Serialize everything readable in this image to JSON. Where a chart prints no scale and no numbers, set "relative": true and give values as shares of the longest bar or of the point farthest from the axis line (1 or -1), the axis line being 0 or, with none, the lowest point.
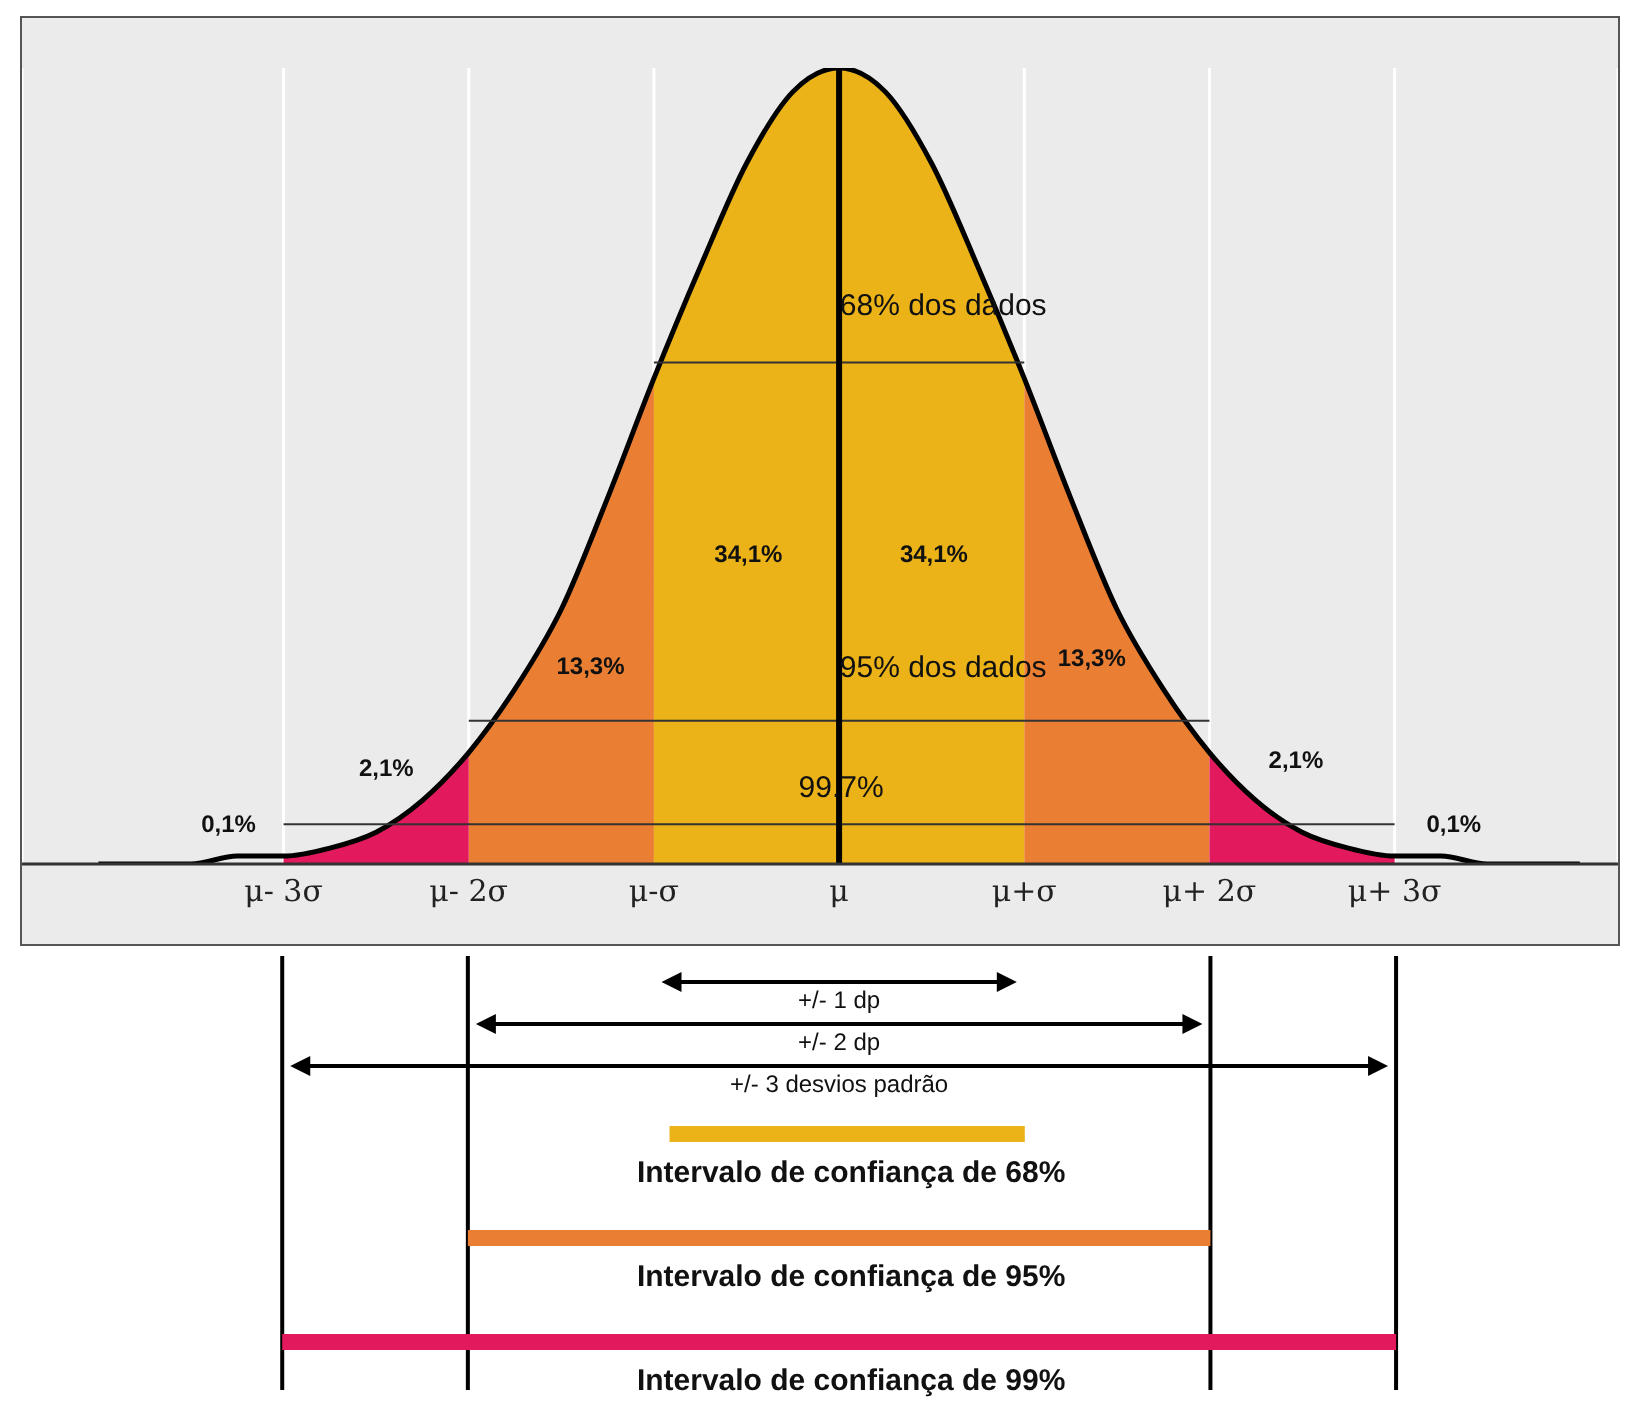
{
  "chart_data": {
    "type": "area",
    "relative": true,
    "legend": false,
    "grid": "x",
    "marker": "none",
    "categories": [
      null,
      null,
      null,
      null,
      "μ- 3σ",
      null,
      null,
      null,
      "μ- 2σ",
      null,
      null,
      null,
      "μ-σ",
      null,
      null,
      null,
      "μ",
      null,
      null,
      null,
      "μ+σ",
      null,
      null,
      null,
      "μ+ 2σ",
      null,
      null,
      null,
      "μ+ 3σ",
      null,
      null,
      null,
      null
    ],
    "series": [
      {
        "color": "#ebb318",
        "values": [
          null,
          null,
          null,
          null,
          null,
          null,
          null,
          null,
          null,
          null,
          null,
          null,
          0.61,
          0.75,
          0.88,
          0.97,
          1,
          0.97,
          0.88,
          0.75,
          0.61,
          null,
          null,
          null,
          null,
          null,
          null,
          null,
          null,
          null,
          null,
          null,
          null
        ]
      },
      {
        "color": "#ea7f33",
        "values": [
          null,
          null,
          null,
          null,
          null,
          null,
          null,
          null,
          0.14,
          0.22,
          0.32,
          0.46,
          0.61,
          null,
          null,
          null,
          null,
          null,
          null,
          null,
          null,
          null,
          null,
          null,
          null,
          null,
          null,
          null,
          null,
          null,
          null,
          null,
          null
        ]
      },
      {
        "color": "#ea7f33",
        "values": [
          null,
          null,
          null,
          null,
          null,
          null,
          null,
          null,
          null,
          null,
          null,
          null,
          null,
          null,
          null,
          null,
          null,
          null,
          null,
          null,
          0.61,
          0.46,
          0.32,
          0.22,
          0.14,
          null,
          null,
          null,
          null,
          null,
          null,
          null,
          null
        ]
      },
      {
        "color": "#e3195e",
        "values": [
          null,
          null,
          null,
          null,
          0.01,
          0.02,
          0.04,
          0.08,
          0.14,
          null,
          null,
          null,
          null,
          null,
          null,
          null,
          null,
          null,
          null,
          null,
          null,
          null,
          null,
          null,
          null,
          null,
          null,
          null,
          null,
          null,
          null,
          null,
          null
        ]
      },
      {
        "color": "#e3195e",
        "values": [
          null,
          null,
          null,
          null,
          null,
          null,
          null,
          null,
          null,
          null,
          null,
          null,
          null,
          null,
          null,
          null,
          null,
          null,
          null,
          null,
          null,
          null,
          null,
          null,
          0.14,
          0.08,
          0.04,
          0.02,
          0.01,
          null,
          null,
          null,
          null
        ]
      },
      {
        "type": "line",
        "color": "#000000",
        "values": [
          0,
          0,
          0,
          0.01,
          0.01,
          0.02,
          0.04,
          0.08,
          0.14,
          0.22,
          0.32,
          0.46,
          0.61,
          0.75,
          0.88,
          0.97,
          1,
          0.97,
          0.88,
          0.75,
          0.61,
          0.46,
          0.32,
          0.22,
          0.14,
          0.08,
          0.04,
          0.02,
          0.01,
          0.01,
          0,
          0,
          0
        ]
      },
      {
        "type": "line",
        "color": "#333333",
        "values": [
          null,
          null,
          null,
          null,
          null,
          null,
          null,
          null,
          null,
          null,
          null,
          null,
          0.63,
          0.63,
          0.63,
          0.63,
          0.63,
          0.63,
          0.63,
          0.63,
          0.63,
          null,
          null,
          null,
          null,
          null,
          null,
          null,
          null,
          null,
          null,
          null,
          null
        ]
      },
      {
        "type": "line",
        "color": "#333333",
        "values": [
          null,
          null,
          null,
          null,
          null,
          null,
          null,
          null,
          0.18,
          0.18,
          0.18,
          0.18,
          0.18,
          0.18,
          0.18,
          0.18,
          0.18,
          0.18,
          0.18,
          0.18,
          0.18,
          0.18,
          0.18,
          0.18,
          0.18,
          null,
          null,
          null,
          null,
          null,
          null,
          null,
          null
        ]
      },
      {
        "type": "line",
        "color": "#333333",
        "values": [
          null,
          null,
          null,
          null,
          0.05,
          0.05,
          0.05,
          0.05,
          0.05,
          0.05,
          0.05,
          0.05,
          0.05,
          0.05,
          0.05,
          0.05,
          0.05,
          0.05,
          0.05,
          0.05,
          0.05,
          0.05,
          0.05,
          0.05,
          0.05,
          0.05,
          0.05,
          0.05,
          0.05,
          null,
          null,
          null,
          null
        ]
      }
    ],
    "ref_lines": [
      {
        "axis": "x",
        "value": "μ",
        "color": "#000000"
      }
    ],
    "annotations": [
      "68% dos dados",
      "95% dos dados",
      "99.7%",
      "34,1%",
      "34,1%",
      "13,3%",
      "13,3%",
      "2,1%",
      "2,1%",
      "0,1%",
      "0,1%",
      "+/- 1 dp",
      "+/- 2 dp",
      "+/- 3 desvios padrão",
      "Intervalo de confiança de 68%",
      "Intervalo de confiança de 95%",
      "Intervalo de confiança de 99%"
    ]
  }
}
